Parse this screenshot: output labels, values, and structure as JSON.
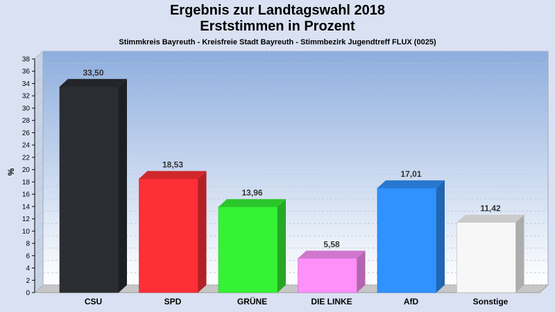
{
  "chart_data": {
    "type": "bar",
    "title": "Ergebnis zur Landtagswahl 2018",
    "subtitle": "Erststimmen in Prozent",
    "subsubtitle": "Stimmkreis Bayreuth - Kreisfreie Stadt Bayreuth - Stimmbezirk Jugendtreff FLUX (0025)",
    "ylabel": "%",
    "xlabel": "",
    "ylim": [
      0,
      38
    ],
    "ytick_step": 2,
    "grid": true,
    "categories": [
      "CSU",
      "SPD",
      "GRÜNE",
      "DIE LINKE",
      "AfD",
      "Sonstige"
    ],
    "values": [
      33.5,
      18.53,
      13.96,
      5.58,
      17.01,
      11.42
    ],
    "value_labels": [
      "33,50",
      "18,53",
      "13,96",
      "5,58",
      "17,01",
      "11,42"
    ],
    "colors": [
      "#2b2d33",
      "#ff2f36",
      "#35f235",
      "#ff90fa",
      "#2f92fe",
      "#f7f7f7"
    ]
  }
}
